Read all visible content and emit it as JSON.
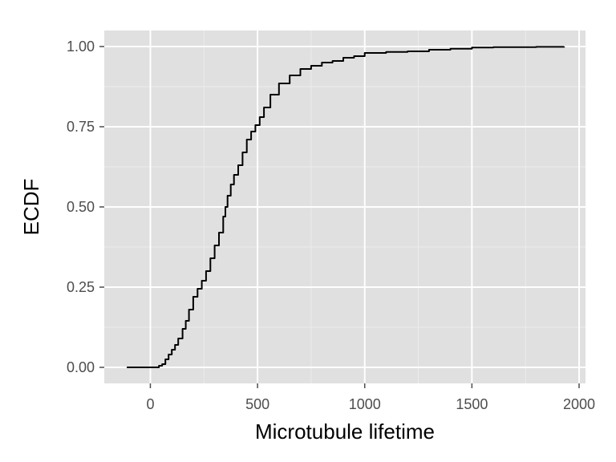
{
  "chart_data": {
    "type": "line",
    "title": "",
    "xlabel": "Microtubule lifetime",
    "ylabel": "ECDF",
    "xlim": [
      -215,
      2030
    ],
    "ylim": [
      -0.05,
      1.05
    ],
    "x_ticks": [
      0,
      500,
      1000,
      1500,
      2000
    ],
    "x_tick_labels": [
      "0",
      "500",
      "1000",
      "1500",
      "2000"
    ],
    "y_ticks": [
      0.0,
      0.25,
      0.5,
      0.75,
      1.0
    ],
    "y_tick_labels": [
      "0.00",
      "0.25",
      "0.50",
      "0.75",
      "1.00"
    ],
    "grid": true,
    "series": [
      {
        "x": [
          -110,
          20,
          40,
          55,
          70,
          85,
          100,
          115,
          130,
          150,
          165,
          180,
          200,
          220,
          240,
          260,
          280,
          300,
          320,
          340,
          350,
          360,
          375,
          390,
          410,
          430,
          450,
          470,
          490,
          510,
          530,
          560,
          600,
          650,
          700,
          750,
          800,
          850,
          900,
          950,
          1000,
          1100,
          1200,
          1300,
          1400,
          1500,
          1600,
          1800,
          1930
        ],
        "y": [
          0.0,
          0.0,
          0.005,
          0.01,
          0.025,
          0.04,
          0.055,
          0.07,
          0.09,
          0.12,
          0.145,
          0.18,
          0.22,
          0.245,
          0.27,
          0.3,
          0.34,
          0.38,
          0.42,
          0.47,
          0.5,
          0.535,
          0.57,
          0.6,
          0.63,
          0.67,
          0.71,
          0.735,
          0.755,
          0.78,
          0.81,
          0.85,
          0.885,
          0.91,
          0.93,
          0.94,
          0.95,
          0.955,
          0.965,
          0.97,
          0.98,
          0.983,
          0.985,
          0.99,
          0.993,
          0.997,
          0.998,
          0.999,
          1.0
        ]
      }
    ]
  },
  "colors": {
    "panel_background": "#e0e0e0",
    "major_grid": "#ffffff",
    "minor_grid": "#ececec",
    "line": "#000000"
  }
}
